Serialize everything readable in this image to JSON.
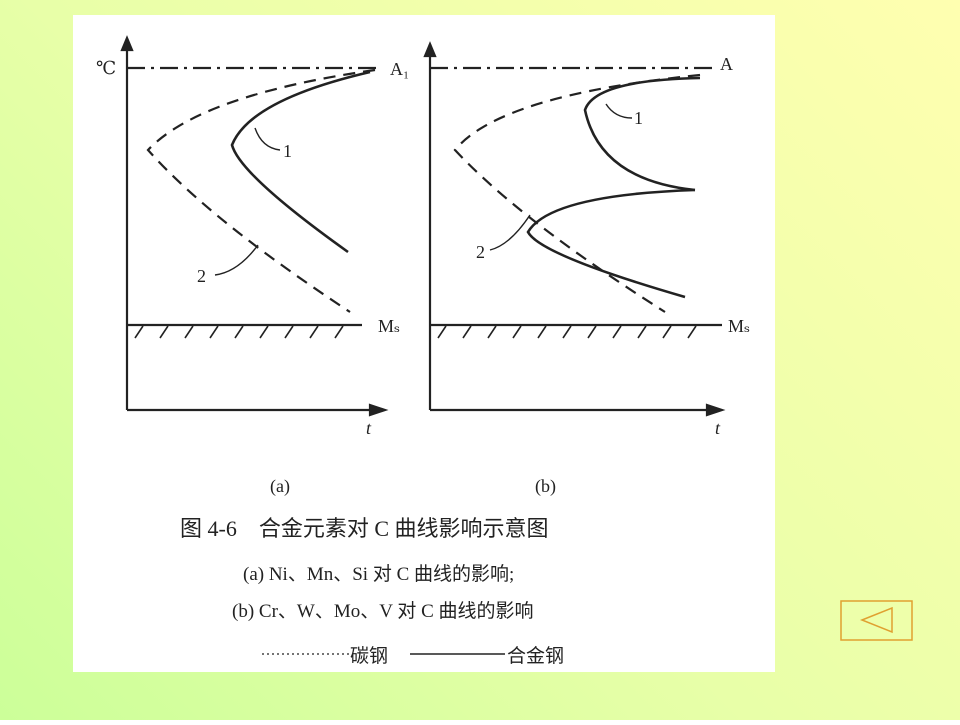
{
  "figure": {
    "panel_a": {
      "y_axis_label": "℃",
      "x_axis_label": "t",
      "top_line_label": "A₁",
      "bottom_line_label": "Mₛ",
      "curve_1_label": "1",
      "curve_2_label": "2",
      "panel_label": "(a)"
    },
    "panel_b": {
      "x_axis_label": "t",
      "top_line_label": "A",
      "bottom_line_label": "Mₛ",
      "curve_1_label": "1",
      "curve_2_label": "2",
      "panel_label": "(b)"
    },
    "caption": {
      "title": "图 4-6　合金元素对 C 曲线影响示意图",
      "line_a": "(a) Ni、Mn、Si 对 C 曲线的影响;",
      "line_b": "(b) Cr、W、Mo、V 对 C 曲线的影响",
      "legend": [
        "碳钢",
        "合金钢"
      ]
    }
  }
}
